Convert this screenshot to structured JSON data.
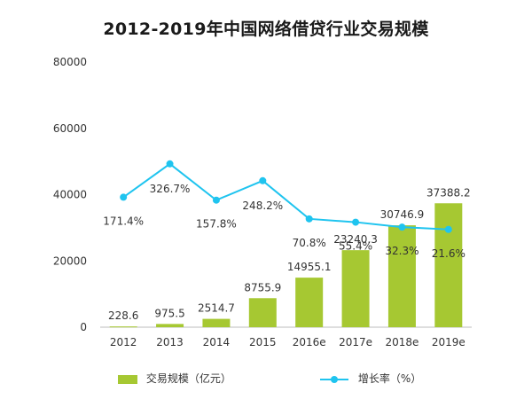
{
  "chart_data": {
    "type": "bar",
    "title": "2012-2019年中国网络借贷行业交易规模",
    "categories": [
      "2012",
      "2013",
      "2014",
      "2015",
      "2016e",
      "2017e",
      "2018e",
      "2019e"
    ],
    "series": [
      {
        "name": "交易规模（亿元）",
        "type": "bar",
        "axis": "left",
        "values": [
          228.6,
          975.5,
          2514.7,
          8755.9,
          14955.1,
          23240.3,
          30746.9,
          37388.2
        ],
        "labels": [
          "228.6",
          "975.5",
          "2514.7",
          "8755.9",
          "14955.1",
          "23240.3",
          "30746.9",
          "37388.2"
        ],
        "color": "#a6c832"
      },
      {
        "name": "增长率（%）",
        "type": "line",
        "axis": "hidden-right",
        "values": [
          171.4,
          326.7,
          157.8,
          248.2,
          70.8,
          55.4,
          32.3,
          21.6
        ],
        "labels": [
          "171.4%",
          "326.7%",
          "157.8%",
          "248.2%",
          "70.8%",
          "55.4%",
          "32.3%",
          "21.6%"
        ],
        "color": "#1fc4ef"
      }
    ],
    "y_ticks": [
      0,
      20000,
      40000,
      60000,
      80000
    ],
    "ylim": [
      0,
      80000
    ],
    "grid": false,
    "legend_position": "bottom"
  }
}
